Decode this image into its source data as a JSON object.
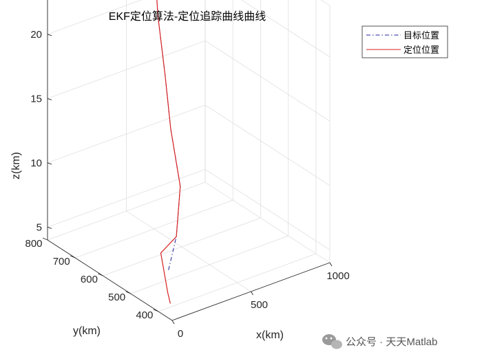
{
  "chart_data": {
    "type": "line",
    "title": "EKF定位算法-定位追踪曲线曲线",
    "xlabel": "x(km)",
    "ylabel": "y(km)",
    "zlabel": "z(km)",
    "xlim": [
      0,
      1000
    ],
    "ylim": [
      350,
      800
    ],
    "zlim": [
      4,
      24
    ],
    "x_ticks": [
      "0",
      "500",
      "1000"
    ],
    "y_ticks": [
      "400",
      "500",
      "600",
      "700",
      "800"
    ],
    "z_ticks": [
      "5",
      "10",
      "15",
      "20"
    ],
    "grid": true,
    "legend_position": "top-right",
    "series": [
      {
        "name": "目标位置",
        "style": "dash-dot",
        "color": "#1f1f9e",
        "x": [
          100,
          220,
          350,
          430,
          500,
          560,
          610
        ],
        "y": [
          420,
          460,
          520,
          600,
          660,
          720,
          760
        ],
        "z": [
          6.5,
          8.0,
          10.5,
          13.5,
          16.5,
          20.0,
          23.0
        ]
      },
      {
        "name": "定位位置",
        "style": "solid",
        "color": "#d62020",
        "x": [
          50,
          60,
          95,
          220,
          350,
          430,
          500,
          560,
          610
        ],
        "y": [
          385,
          400,
          445,
          460,
          520,
          600,
          660,
          720,
          760
        ],
        "z": [
          4.6,
          5.2,
          7.5,
          8.0,
          10.5,
          13.5,
          16.5,
          20.0,
          23.0
        ]
      }
    ]
  },
  "watermark": {
    "text": "公众号 · 天天Matlab"
  }
}
